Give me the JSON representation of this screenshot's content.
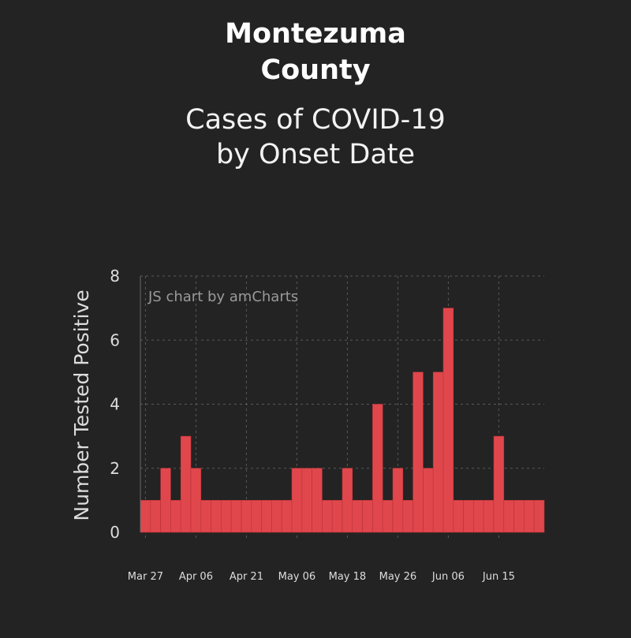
{
  "header": {
    "title_line1": "Montezuma",
    "title_line2": "County",
    "subtitle_line1": "Cases of COVID-19",
    "subtitle_line2": "by Onset Date"
  },
  "watermark": "JS chart by amCharts",
  "colors": {
    "background": "#232323",
    "bar": "#e0474c",
    "bar_stroke": "#b83338",
    "grid": "#5a5a5a"
  },
  "chart_data": {
    "type": "bar",
    "title": "Montezuma County",
    "subtitle": "Cases of COVID-19 by Onset Date",
    "xlabel": "",
    "ylabel": "Number Tested Positive",
    "ylim": [
      0,
      8
    ],
    "yticks": [
      0,
      2,
      4,
      6,
      8
    ],
    "grid": true,
    "xtick_labels": [
      "Mar 27",
      "Apr 06",
      "Apr 21",
      "May 06",
      "May 18",
      "May 26",
      "Jun 06",
      "Jun 15"
    ],
    "xtick_bar_index": [
      0,
      5,
      10,
      15,
      20,
      25,
      30,
      35
    ],
    "values": [
      1,
      1,
      2,
      1,
      3,
      2,
      1,
      1,
      1,
      1,
      1,
      1,
      1,
      1,
      1,
      2,
      2,
      2,
      1,
      1,
      2,
      1,
      1,
      4,
      1,
      2,
      1,
      5,
      2,
      5,
      7,
      1,
      1,
      1,
      1,
      3,
      1,
      1,
      1,
      1
    ]
  }
}
